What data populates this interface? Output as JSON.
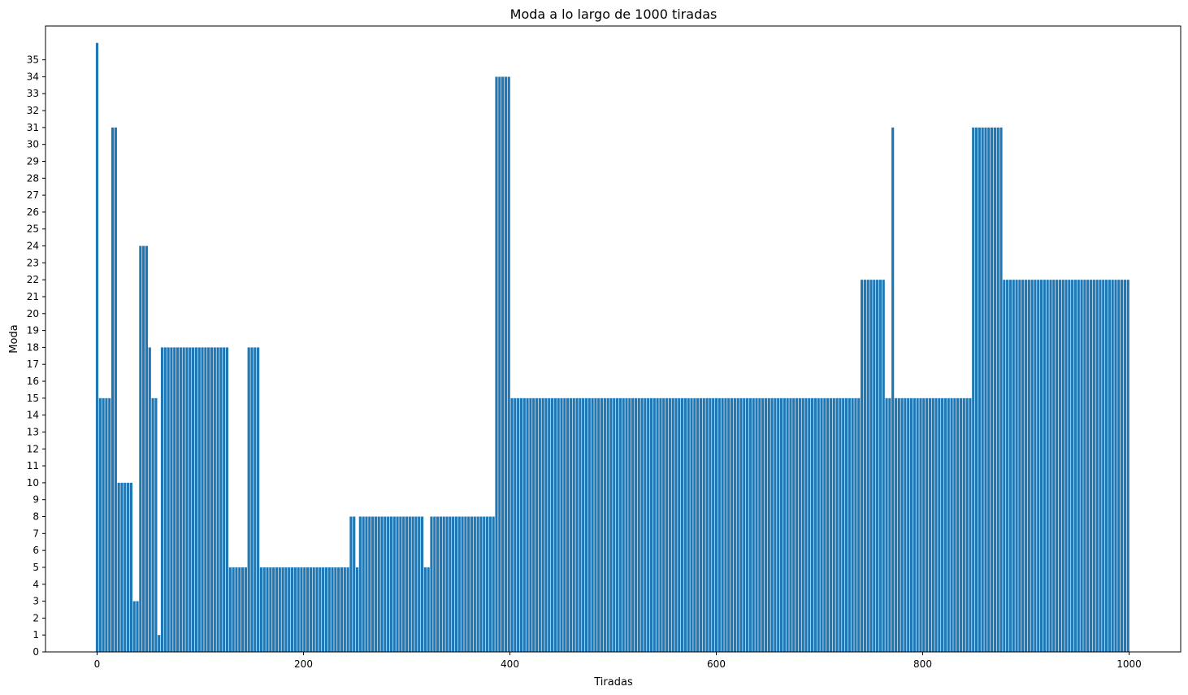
{
  "chart_data": {
    "type": "bar",
    "title": "Moda a lo largo de 1000 tiradas",
    "xlabel": "Tiradas",
    "ylabel": "Moda",
    "xlim": [
      -50,
      1050
    ],
    "ylim": [
      0,
      37
    ],
    "xticks": [
      0,
      200,
      400,
      600,
      800,
      1000
    ],
    "yticks": [
      0,
      1,
      2,
      3,
      4,
      5,
      6,
      7,
      8,
      9,
      10,
      11,
      12,
      13,
      14,
      15,
      16,
      17,
      18,
      19,
      20,
      21,
      22,
      23,
      24,
      25,
      26,
      27,
      28,
      29,
      30,
      31,
      32,
      33,
      34,
      35
    ],
    "bar_color": "#1f77b4",
    "bar_width": 2.5,
    "x_start": 0,
    "x_step": 3,
    "segments": [
      {
        "from": 0,
        "to": 0,
        "value": 36
      },
      {
        "from": 1,
        "to": 12,
        "value": 15
      },
      {
        "from": 13,
        "to": 18,
        "value": 31
      },
      {
        "from": 19,
        "to": 35,
        "value": 10
      },
      {
        "from": 36,
        "to": 40,
        "value": 3
      },
      {
        "from": 41,
        "to": 49,
        "value": 24
      },
      {
        "from": 50,
        "to": 51,
        "value": 18
      },
      {
        "from": 52,
        "to": 58,
        "value": 15
      },
      {
        "from": 59,
        "to": 61,
        "value": 1
      },
      {
        "from": 62,
        "to": 127,
        "value": 18
      },
      {
        "from": 128,
        "to": 144,
        "value": 5
      },
      {
        "from": 145,
        "to": 157,
        "value": 18
      },
      {
        "from": 158,
        "to": 243,
        "value": 5
      },
      {
        "from": 244,
        "to": 250,
        "value": 8
      },
      {
        "from": 251,
        "to": 254,
        "value": 5
      },
      {
        "from": 255,
        "to": 317,
        "value": 8
      },
      {
        "from": 318,
        "to": 323,
        "value": 5
      },
      {
        "from": 324,
        "to": 386,
        "value": 8
      },
      {
        "from": 387,
        "to": 399,
        "value": 34
      },
      {
        "from": 400,
        "to": 740,
        "value": 15
      },
      {
        "from": 741,
        "to": 762,
        "value": 22
      },
      {
        "from": 763,
        "to": 770,
        "value": 15
      },
      {
        "from": 771,
        "to": 773,
        "value": 31
      },
      {
        "from": 774,
        "to": 846,
        "value": 15
      },
      {
        "from": 847,
        "to": 876,
        "value": 31
      },
      {
        "from": 877,
        "to": 999,
        "value": 22
      }
    ]
  }
}
